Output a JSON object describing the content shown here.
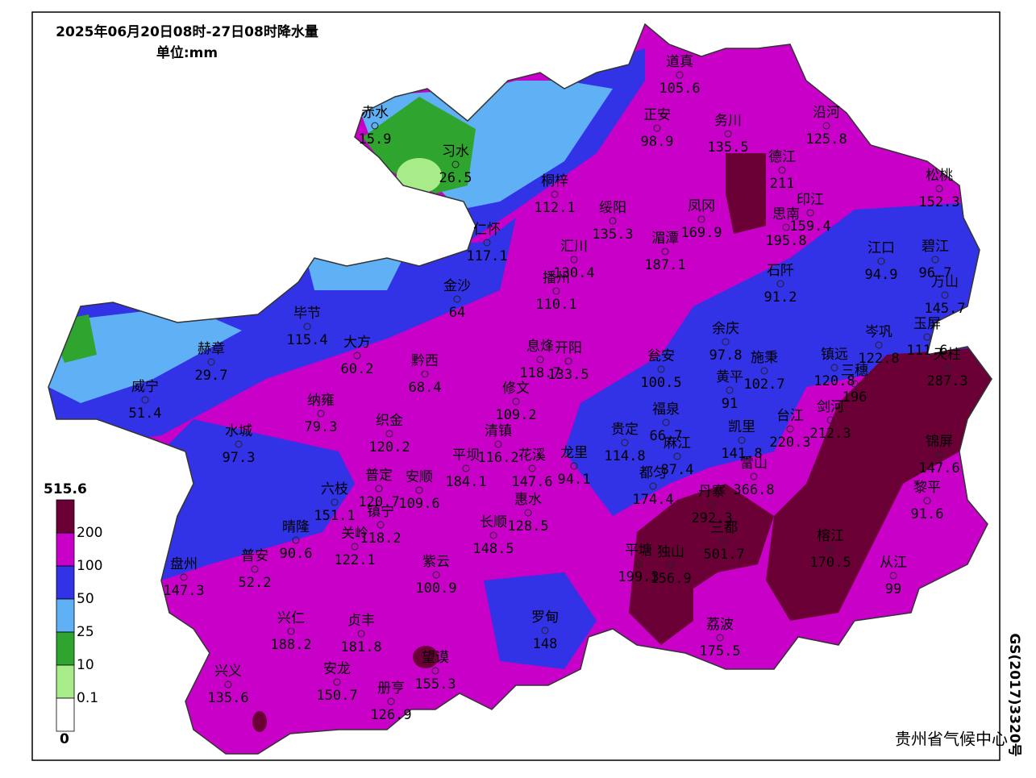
{
  "header": {
    "title": "2025年06月20日08时-27日08时降水量",
    "unit": "单位:mm"
  },
  "legend": {
    "top": 515.6,
    "bottom": 0,
    "levels": [
      200,
      100,
      50,
      25,
      10,
      0.1
    ],
    "colors": [
      "#6b0037",
      "#c800c8",
      "#3232e6",
      "#5fb0f5",
      "#2fa52f",
      "#a8ec8a",
      "#ffffff"
    ]
  },
  "stations": [
    {
      "name": "赤水",
      "value": 15.9
    },
    {
      "name": "习水",
      "value": 26.5
    },
    {
      "name": "道真",
      "value": 105.6
    },
    {
      "name": "正安",
      "value": 98.9
    },
    {
      "name": "务川",
      "value": 135.5
    },
    {
      "name": "沿河",
      "value": 125.8
    },
    {
      "name": "德江",
      "value": 211
    },
    {
      "name": "桐梓",
      "value": 112.1
    },
    {
      "name": "松桃",
      "value": 152.3
    },
    {
      "name": "绥阳",
      "value": 135.3
    },
    {
      "name": "凤冈",
      "value": 169.9
    },
    {
      "name": "印江",
      "value": 159.4
    },
    {
      "name": "思南",
      "value": 195.8
    },
    {
      "name": "仁怀",
      "value": 117.1
    },
    {
      "name": "汇川",
      "value": 130.4
    },
    {
      "name": "湄潭",
      "value": 187.1
    },
    {
      "name": "江口",
      "value": 94.9
    },
    {
      "name": "碧江",
      "value": 96.7
    },
    {
      "name": "石阡",
      "value": 91.2
    },
    {
      "name": "播州",
      "value": 110.1
    },
    {
      "name": "金沙",
      "value": 64
    },
    {
      "name": "万山",
      "value": 145.7
    },
    {
      "name": "毕节",
      "value": 115.4
    },
    {
      "name": "余庆",
      "value": 97.8
    },
    {
      "name": "岑巩",
      "value": 122.8
    },
    {
      "name": "玉屏",
      "value": 111.6
    },
    {
      "name": "赫章",
      "value": 29.7
    },
    {
      "name": "大方",
      "value": 60.2
    },
    {
      "name": "息烽",
      "value": 118.7
    },
    {
      "name": "开阳",
      "value": 133.5
    },
    {
      "name": "黔西",
      "value": 68.4
    },
    {
      "name": "瓮安",
      "value": 100.5
    },
    {
      "name": "施秉",
      "value": 102.7
    },
    {
      "name": "镇远",
      "value": 120.8
    },
    {
      "name": "三穗",
      "value": 196
    },
    {
      "name": "天柱",
      "value": 287.3
    },
    {
      "name": "黄平",
      "value": 91
    },
    {
      "name": "威宁",
      "value": 51.4
    },
    {
      "name": "修文",
      "value": 109.2
    },
    {
      "name": "清镇",
      "value": 116.2
    },
    {
      "name": "花溪",
      "value": 147.6
    },
    {
      "name": "龙里",
      "value": 94.1
    },
    {
      "name": "贵定",
      "value": 114.8
    },
    {
      "name": "纳雍",
      "value": 79.3
    },
    {
      "name": "福泉",
      "value": 66.7
    },
    {
      "name": "凯里",
      "value": 141.8
    },
    {
      "name": "台江",
      "value": 220.3
    },
    {
      "name": "剑河",
      "value": 212.3
    },
    {
      "name": "织金",
      "value": 120.2
    },
    {
      "name": "水城",
      "value": 97.3
    },
    {
      "name": "麻江",
      "value": 87.4
    },
    {
      "name": "都匀",
      "value": 174.4
    },
    {
      "name": "雷山",
      "value": 366.8
    },
    {
      "name": "锦屏",
      "value": 147.6
    },
    {
      "name": "平坝",
      "value": 184.1
    },
    {
      "name": "普定",
      "value": 120.7
    },
    {
      "name": "安顺",
      "value": 109.6
    },
    {
      "name": "六枝",
      "value": 151.1
    },
    {
      "name": "黎平",
      "value": 91.6
    },
    {
      "name": "丹寨",
      "value": 292.3
    },
    {
      "name": "惠水",
      "value": 128.5
    },
    {
      "name": "镇宁",
      "value": 118.2
    },
    {
      "name": "长顺",
      "value": 148.5
    },
    {
      "name": "三都",
      "value": 501.7
    },
    {
      "name": "关岭",
      "value": 122.1
    },
    {
      "name": "晴隆",
      "value": 90.6
    },
    {
      "name": "普安",
      "value": 52.2
    },
    {
      "name": "盘州",
      "value": 147.3
    },
    {
      "name": "榕江",
      "value": 170.5
    },
    {
      "name": "平塘",
      "value": 199.3
    },
    {
      "name": "独山",
      "value": 156.9
    },
    {
      "name": "从江",
      "value": 99
    },
    {
      "name": "紫云",
      "value": 100.9
    },
    {
      "name": "罗甸",
      "value": 148
    },
    {
      "name": "荔波",
      "value": 175.5
    },
    {
      "name": "兴仁",
      "value": 188.2
    },
    {
      "name": "贞丰",
      "value": 181.8
    },
    {
      "name": "望谟",
      "value": 155.3
    },
    {
      "name": "安龙",
      "value": 150.7
    },
    {
      "name": "兴义",
      "value": 135.6
    },
    {
      "name": "册亨",
      "value": 126.9
    }
  ],
  "footer": {
    "agency": "贵州省气候中心",
    "approval": "GS(2017)3320号"
  }
}
